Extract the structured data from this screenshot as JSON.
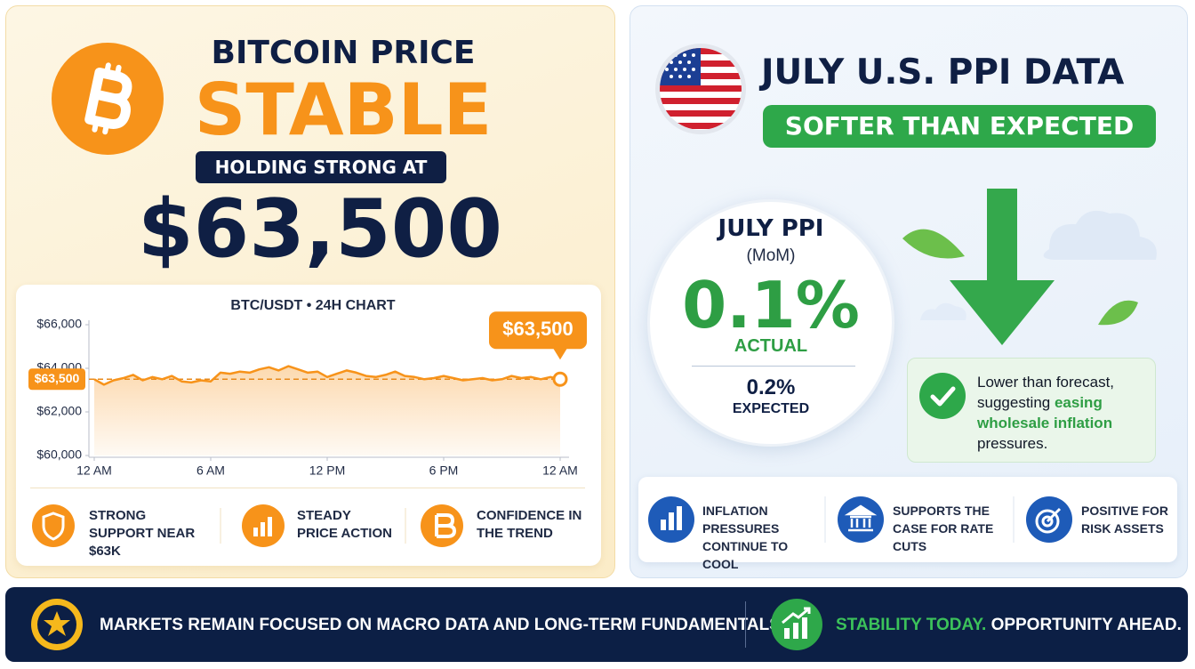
{
  "bitcoin": {
    "title": "BITCOIN PRICE",
    "headline": "STABLE",
    "tag": "HOLDING STRONG AT",
    "price": "$63,500",
    "features": [
      "STRONG SUPPORT NEAR $63K",
      "STEADY PRICE ACTION",
      "CONFIDENCE IN THE TREND"
    ]
  },
  "chart_data": {
    "type": "line",
    "title": "BTC/USDT • 24H CHART",
    "x": [
      0,
      0.5,
      1,
      1.5,
      2,
      2.5,
      3,
      3.5,
      4,
      4.5,
      5,
      5.5,
      6,
      6.5,
      7,
      7.5,
      8,
      8.5,
      9,
      9.5,
      10,
      10.5,
      11,
      11.5,
      12,
      12.5,
      13,
      13.5,
      14,
      14.5,
      15,
      15.5,
      16,
      16.5,
      17,
      17.5,
      18,
      18.5,
      19,
      19.5,
      20,
      20.5,
      21,
      21.5,
      22,
      22.5,
      23,
      23.5,
      24
    ],
    "values": [
      63500,
      63250,
      63450,
      63550,
      63700,
      63450,
      63600,
      63500,
      63650,
      63400,
      63350,
      63450,
      63400,
      63800,
      63750,
      63850,
      63800,
      63950,
      64050,
      63900,
      64100,
      63950,
      63800,
      63850,
      63600,
      63750,
      63900,
      63800,
      63650,
      63600,
      63700,
      63850,
      63650,
      63600,
      63500,
      63550,
      63650,
      63550,
      63450,
      63500,
      63550,
      63450,
      63500,
      63650,
      63550,
      63600,
      63500,
      63600,
      63500
    ],
    "color": "#f7931a",
    "xlim": [
      0,
      24
    ],
    "xticks": [
      {
        "value": 0,
        "label": "12 AM"
      },
      {
        "value": 6,
        "label": "6 AM"
      },
      {
        "value": 12,
        "label": "12 PM"
      },
      {
        "value": 18,
        "label": "6 PM"
      },
      {
        "value": 24,
        "label": "12 AM"
      }
    ],
    "ylim": [
      60000,
      66000
    ],
    "yticks": [
      {
        "value": 60000,
        "label": "$60,000"
      },
      {
        "value": 62000,
        "label": "$62,000"
      },
      {
        "value": 64000,
        "label": "$64,000"
      },
      {
        "value": 66000,
        "label": "$66,000"
      }
    ],
    "grid": false,
    "reference_line": {
      "value": 63500,
      "label": "$63,500"
    },
    "end_label": {
      "value": 63500,
      "label": "$63,500"
    }
  },
  "ppi": {
    "title": "JULY U.S. PPI DATA",
    "badge": "SOFTER THAN EXPECTED",
    "circle": {
      "title": "JULY PPI",
      "subtitle": "(MoM)",
      "actual": "0.1%",
      "actual_label": "ACTUAL",
      "expected": "0.2%",
      "expected_label": "EXPECTED"
    },
    "note": {
      "before": "Lower than forecast, suggesting",
      "highlight": "easing wholesale inflation",
      "after": "pressures."
    },
    "points": [
      "INFLATION PRESSURES CONTINUE TO COOL",
      "SUPPORTS THE CASE FOR RATE CUTS",
      "POSITIVE FOR RISK ASSETS"
    ]
  },
  "footer": {
    "message": "MARKETS REMAIN FOCUSED ON MACRO DATA AND LONG-TERM FUNDAMENTALS.",
    "highlight": "STABILITY TODAY.",
    "tagline": "OPPORTUNITY AHEAD."
  }
}
